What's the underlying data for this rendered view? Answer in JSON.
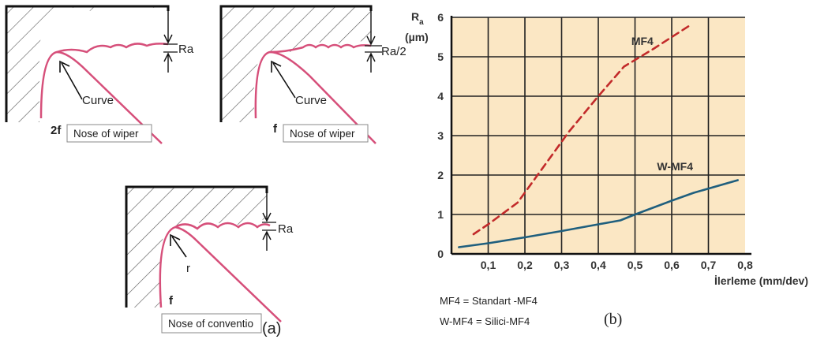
{
  "panel_a": {
    "top_left": {
      "ra_label": "Ra",
      "curve_label": "Curve",
      "feed_label": "2f",
      "nose_label": "Nose of wiper"
    },
    "top_right": {
      "ra_label": "Ra/2",
      "curve_label": "Curve",
      "feed_label": "f",
      "nose_label": "Nose of wiper"
    },
    "bottom": {
      "ra_label": "Ra",
      "radius_label": "r",
      "feed_label": "f",
      "nose_label": "Nose of conventio"
    },
    "caption": "(a)"
  },
  "panel_b": {
    "caption": "(b)",
    "legend_notes": [
      "MF4 = Standart -MF4",
      "W-MF4 = Silici-MF4"
    ]
  },
  "colors": {
    "plot_bg": "#fbe7c4",
    "grid": "#222222",
    "mf4": "#c22a2a",
    "wmf4": "#1f5f7e",
    "tool_profile": "#d64f7a"
  },
  "chart_data": {
    "type": "line",
    "ylabel_symbol": "R",
    "ylabel_sub": "a",
    "ylabel_unit": "(µm)",
    "xlabel": "İlerleme (mm/dev)",
    "xlim": [
      0,
      0.8
    ],
    "ylim": [
      0,
      6
    ],
    "xticks": [
      "0,1",
      "0,2",
      "0,3",
      "0,4",
      "0,5",
      "0,6",
      "0,7",
      "0,8"
    ],
    "yticks": [
      "0",
      "1",
      "2",
      "3",
      "4",
      "5",
      "6"
    ],
    "grid": true,
    "series": [
      {
        "name": "MF4",
        "style": "dashed",
        "x": [
          0.06,
          0.1,
          0.18,
          0.25,
          0.32,
          0.4,
          0.47,
          0.55,
          0.65
        ],
        "y": [
          0.5,
          0.75,
          1.3,
          2.2,
          3.1,
          4.0,
          4.75,
          5.2,
          5.8
        ]
      },
      {
        "name": "W-MF4",
        "style": "solid",
        "x": [
          0.02,
          0.1,
          0.2,
          0.3,
          0.4,
          0.46,
          0.5,
          0.6,
          0.66,
          0.78
        ],
        "y": [
          0.17,
          0.27,
          0.42,
          0.58,
          0.75,
          0.85,
          1.0,
          1.35,
          1.55,
          1.87
        ]
      }
    ]
  }
}
